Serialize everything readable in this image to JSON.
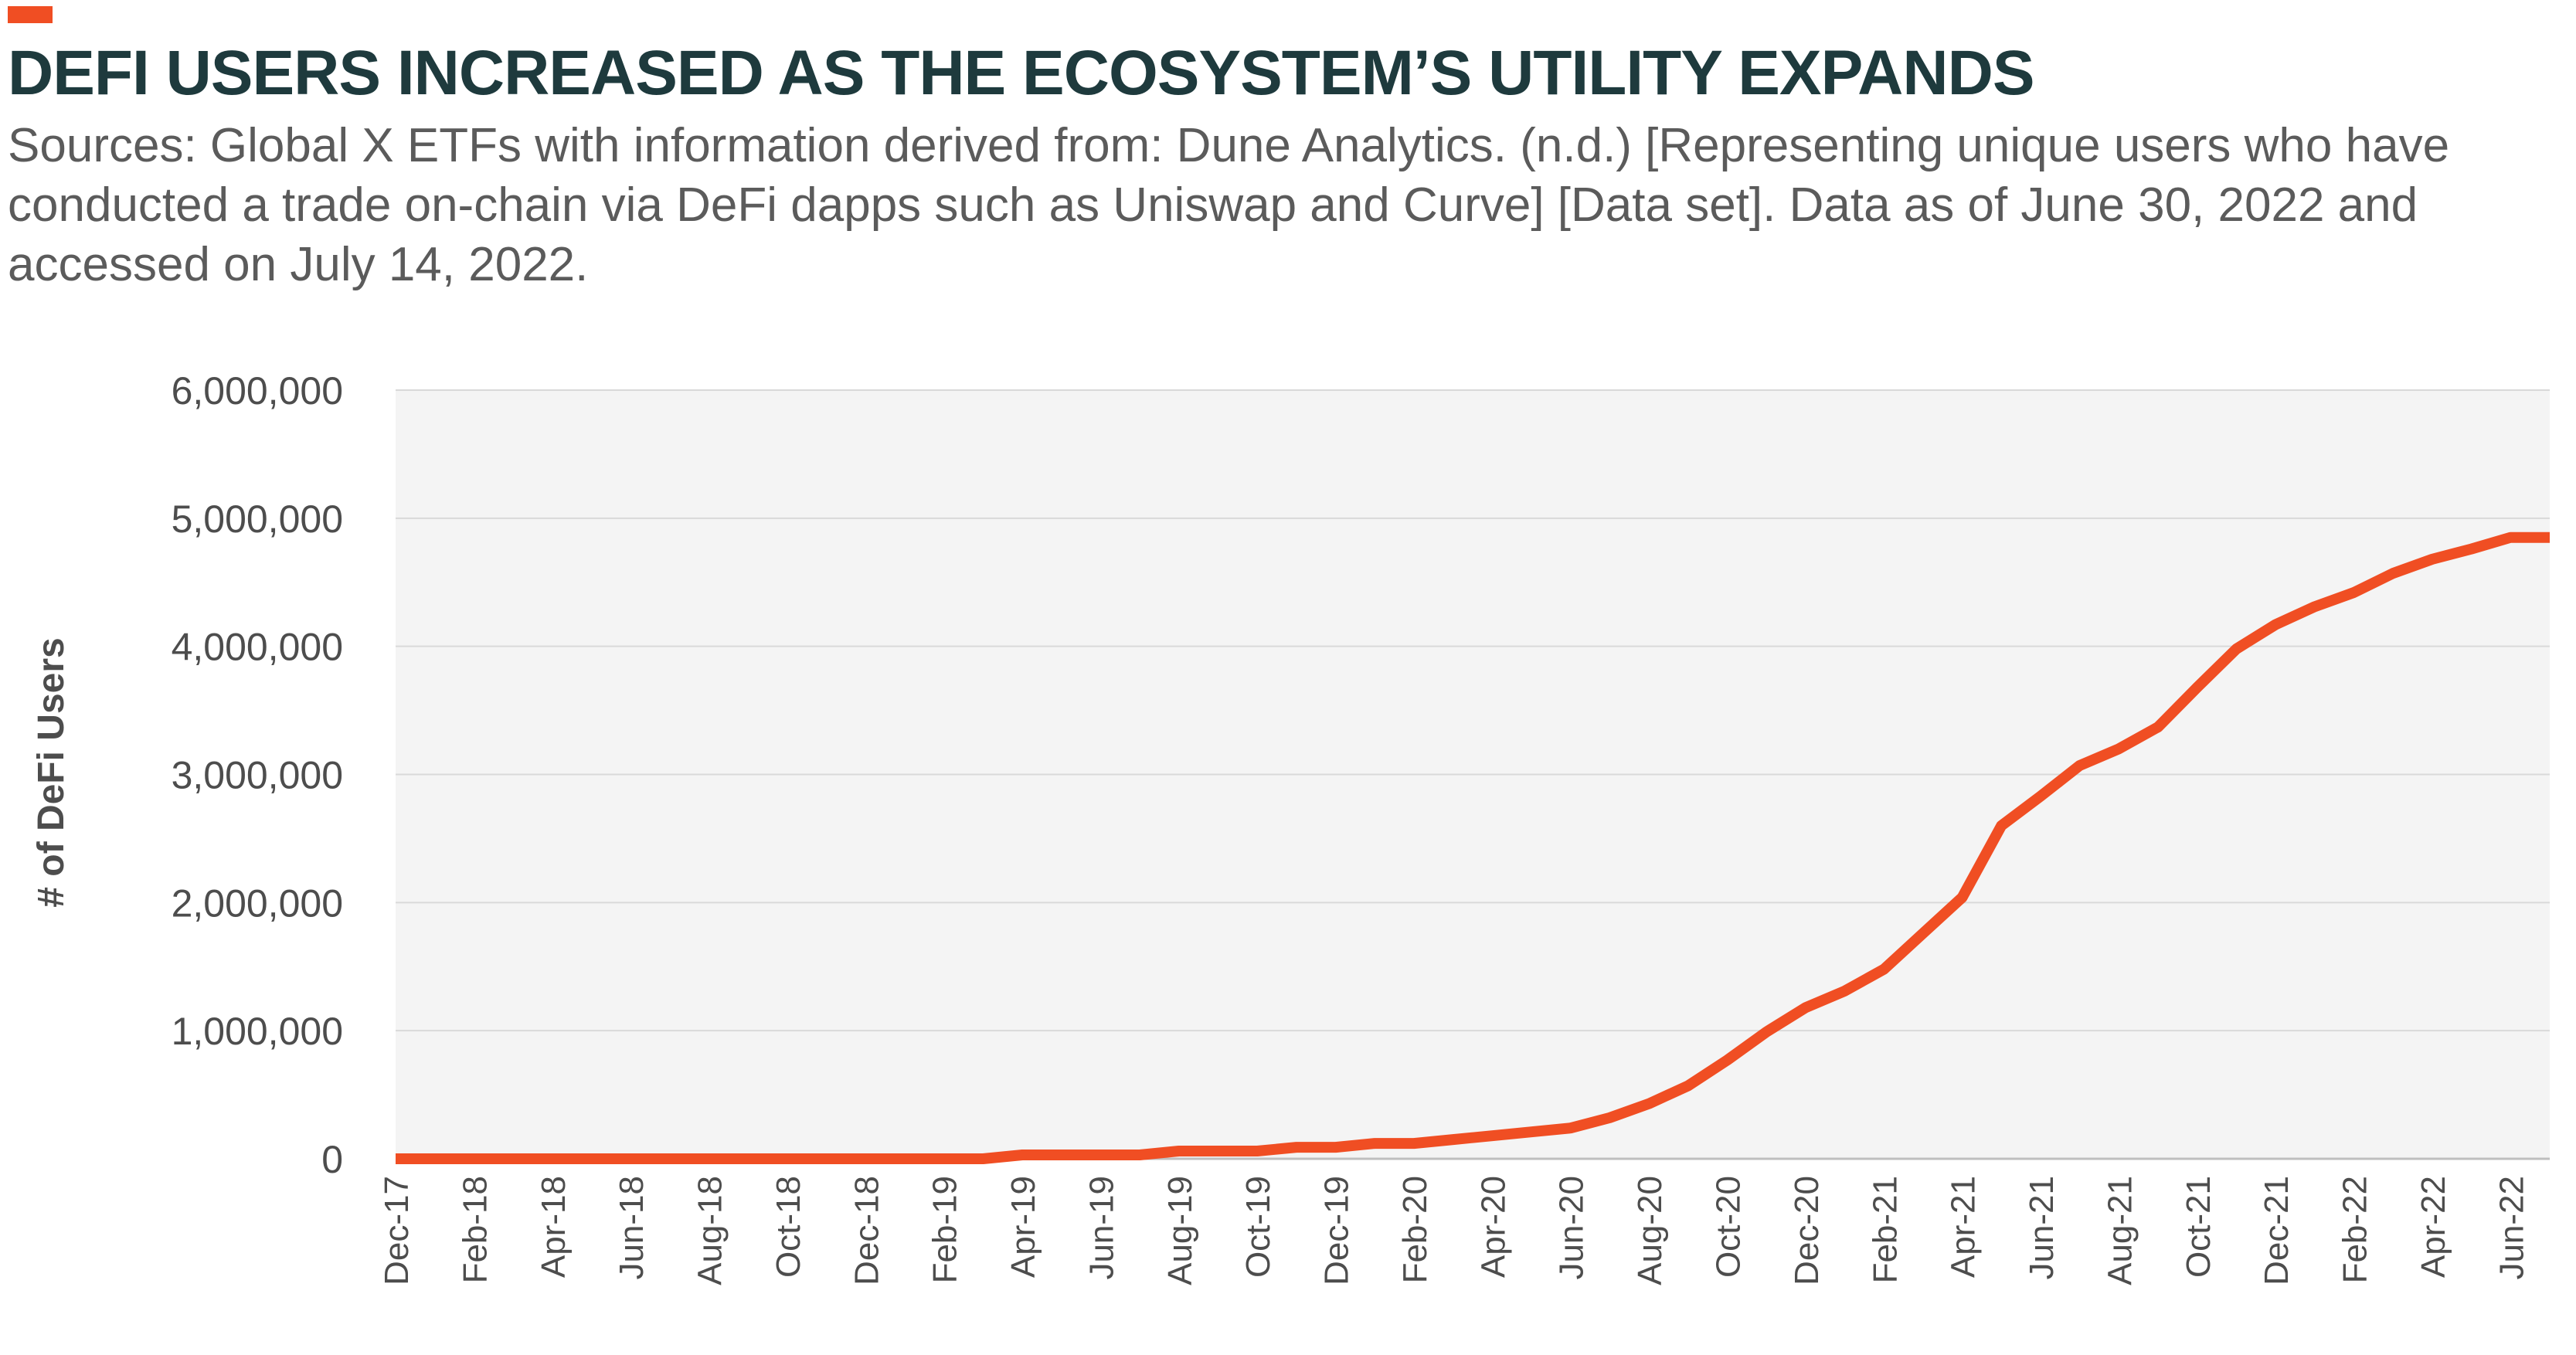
{
  "header": {
    "title": "DEFI USERS INCREASED AS THE ECOSYSTEM’S UTILITY EXPANDS",
    "source": "Sources: Global X ETFs with information derived from: Dune Analytics. (n.d.) [Representing unique users who have conducted a trade on-chain via DeFi dapps such as Uniswap and Curve] [Data set]. Data as of June 30, 2022 and accessed on July 14, 2022."
  },
  "colors": {
    "accent": "#f04e23",
    "title": "#1e3a3d",
    "plot_bg": "#f4f4f4",
    "grid": "#d9d9d9",
    "axis_text": "#4d4d4d"
  },
  "chart_data": {
    "type": "line",
    "title": "DEFI USERS INCREASED AS THE ECOSYSTEM’S UTILITY EXPANDS",
    "xlabel": "",
    "ylabel": "# of DeFi Users",
    "ylim": [
      0,
      6000000
    ],
    "yticks": [
      "0",
      "1,000,000",
      "2,000,000",
      "3,000,000",
      "4,000,000",
      "5,000,000",
      "6,000,000"
    ],
    "ytick_values": [
      0,
      1000000,
      2000000,
      3000000,
      4000000,
      5000000,
      6000000
    ],
    "grid": true,
    "legend": "none",
    "x": [
      "Dec-17",
      "Jan-18",
      "Feb-18",
      "Mar-18",
      "Apr-18",
      "May-18",
      "Jun-18",
      "Jul-18",
      "Aug-18",
      "Sep-18",
      "Oct-18",
      "Nov-18",
      "Dec-18",
      "Jan-19",
      "Feb-19",
      "Mar-19",
      "Apr-19",
      "May-19",
      "Jun-19",
      "Jul-19",
      "Aug-19",
      "Sep-19",
      "Oct-19",
      "Nov-19",
      "Dec-19",
      "Jan-20",
      "Feb-20",
      "Mar-20",
      "Apr-20",
      "May-20",
      "Jun-20",
      "Jul-20",
      "Aug-20",
      "Sep-20",
      "Oct-20",
      "Nov-20",
      "Dec-20",
      "Jan-21",
      "Feb-21",
      "Mar-21",
      "Apr-21",
      "May-21",
      "Jun-21",
      "Jul-21",
      "Aug-21",
      "Sep-21",
      "Oct-21",
      "Nov-21",
      "Dec-21",
      "Jan-22",
      "Feb-22",
      "Mar-22",
      "Apr-22",
      "May-22",
      "Jun-22",
      "Jul-22"
    ],
    "x_tick_labels": [
      "Dec-17",
      "Feb-18",
      "Apr-18",
      "Jun-18",
      "Aug-18",
      "Oct-18",
      "Dec-18",
      "Feb-19",
      "Apr-19",
      "Jun-19",
      "Aug-19",
      "Oct-19",
      "Dec-19",
      "Feb-20",
      "Apr-20",
      "Jun-20",
      "Aug-20",
      "Oct-20",
      "Dec-20",
      "Feb-21",
      "Apr-21",
      "Jun-21",
      "Aug-21",
      "Oct-21",
      "Dec-21",
      "Feb-22",
      "Apr-22",
      "Jun-22"
    ],
    "series": [
      {
        "color": "#f04e23",
        "values": [
          0,
          0,
          0,
          0,
          0,
          0,
          0,
          0,
          0,
          0,
          0,
          0,
          0,
          0,
          0,
          0,
          30000,
          30000,
          30000,
          30000,
          60000,
          60000,
          60000,
          90000,
          90000,
          120000,
          120000,
          150000,
          180000,
          210000,
          240000,
          320000,
          430000,
          570000,
          770000,
          990000,
          1180000,
          1310000,
          1480000,
          1760000,
          2040000,
          2600000,
          2830000,
          3070000,
          3200000,
          3370000,
          3680000,
          3980000,
          4170000,
          4310000,
          4420000,
          4570000,
          4680000,
          4760000,
          4850000,
          4850000
        ]
      }
    ]
  }
}
